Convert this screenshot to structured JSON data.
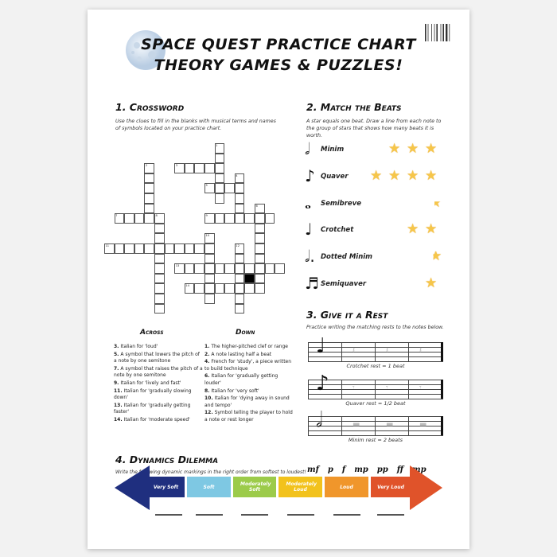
{
  "header": {
    "title_line1": "SPACE QUEST PRACTICE CHART",
    "title_line2": "THEORY GAMES & PUZZLES!",
    "moon_icon": "moon-icon",
    "barcode_icon": "barcode-icon"
  },
  "crossword": {
    "heading": "1. Crossword",
    "intro": "Use the clues to fill in the blanks with musical terms and names of symbols located on your practice chart.",
    "numbers": [
      "1",
      "2",
      "3",
      "4",
      "5",
      "6",
      "7",
      "8",
      "9",
      "10",
      "11",
      "12",
      "13",
      "14"
    ],
    "across_heading": "Across",
    "down_heading": "Down",
    "across": [
      {
        "n": "3.",
        "text": "Italian for 'loud'"
      },
      {
        "n": "5.",
        "text": "A symbol that lowers the pitch of a note by one semitone"
      },
      {
        "n": "7.",
        "text": "A symbol that raises the pitch of a note by one semitone"
      },
      {
        "n": "9.",
        "text": "Italian for 'lively and fast'"
      },
      {
        "n": "11.",
        "text": "Italian for 'gradually slowing down'"
      },
      {
        "n": "13.",
        "text": "Italian for 'gradually getting faster'"
      },
      {
        "n": "14.",
        "text": "Italian for 'moderate speed'"
      }
    ],
    "down": [
      {
        "n": "1.",
        "text": "The higher-pitched clef or range"
      },
      {
        "n": "2.",
        "text": "A note lasting half a beat"
      },
      {
        "n": "4.",
        "text": "French for 'study', a piece written to build technique"
      },
      {
        "n": "6.",
        "text": "Italian for 'gradually getting louder'"
      },
      {
        "n": "8.",
        "text": "Italian for 'very soft'"
      },
      {
        "n": "10.",
        "text": "Italian for 'dying away in sound and tempo'"
      },
      {
        "n": "12.",
        "text": "Symbol telling the player to hold a note or rest longer"
      }
    ]
  },
  "match": {
    "heading": "2. Match the Beats",
    "intro": "A star equals one beat. Draw a line from each note to the group of stars that shows how many beats it is worth.",
    "star_color": "#f6c64a",
    "rows": [
      {
        "note": "Minim",
        "glyph": "𝅗𝅥",
        "stars": 3
      },
      {
        "note": "Quaver",
        "glyph": "♪",
        "stars": 4
      },
      {
        "note": "Semibreve",
        "glyph": "𝅝",
        "stars": 0.4
      },
      {
        "note": "Crotchet",
        "glyph": "♩",
        "stars": 2
      },
      {
        "note": "Dotted Minim",
        "glyph": "𝅗𝅥.",
        "stars": 0.5
      },
      {
        "note": "Semiquaver",
        "glyph": "♬",
        "stars": 1
      }
    ]
  },
  "rest": {
    "heading": "3. Give it a Rest",
    "intro": "Practice writing the matching rests to the notes below.",
    "staves": [
      {
        "label": "Crotchet rest = 1 beat",
        "note": "♩",
        "rest": "𝄽"
      },
      {
        "label": "Quaver rest = 1/2 beat",
        "note": "♪",
        "rest": "𝄾"
      },
      {
        "label": "Minim rest = 2 beats",
        "note": "𝅗𝅥",
        "rest": "▬"
      }
    ]
  },
  "dynamics": {
    "heading": "4. Dynamics Dilemma",
    "intro": "Write the following dynamic markings in the right order from softest to loudest!",
    "markings": [
      "mf",
      "p",
      "f",
      "mp",
      "pp",
      "ff",
      "mp"
    ],
    "segments": [
      {
        "label": "Very Soft",
        "color": "#1f2f7f"
      },
      {
        "label": "Soft",
        "color": "#7ec8e3"
      },
      {
        "label": "Moderately Soft",
        "color": "#9ccb4a"
      },
      {
        "label": "Moderately Loud",
        "color": "#f2c21c"
      },
      {
        "label": "Loud",
        "color": "#f0962b"
      },
      {
        "label": "Very Loud",
        "color": "#e0532a"
      }
    ]
  }
}
